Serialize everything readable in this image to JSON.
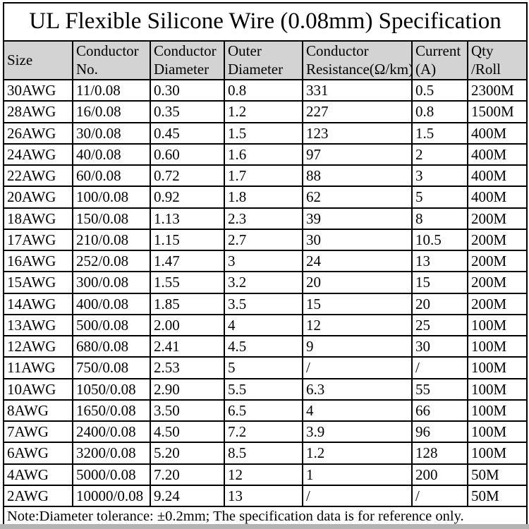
{
  "title": "UL Flexible Silicone Wire (0.08mm) Specification",
  "note": "Note:Diameter tolerance: ±0.2mm; The specification data is for reference only.",
  "colors": {
    "header_bg": "#d3d3d3",
    "border": "#000000",
    "bottom_strip": "#b3b3b3"
  },
  "table": {
    "headers": [
      {
        "lines": [
          "Size"
        ]
      },
      {
        "lines": [
          "Conductor",
          "No."
        ]
      },
      {
        "lines": [
          "Conductor",
          "Diameter"
        ]
      },
      {
        "lines": [
          "Outer",
          "Diameter"
        ]
      },
      {
        "lines": [
          "Conductor",
          "Resistance(Ω/km)"
        ]
      },
      {
        "lines": [
          "Current",
          "(A)"
        ]
      },
      {
        "lines": [
          "Qty",
          "/Roll"
        ]
      }
    ],
    "rows": [
      [
        "30AWG",
        "11/0.08",
        "0.30",
        "0.8",
        "331",
        "0.5",
        "2300M"
      ],
      [
        "28AWG",
        "16/0.08",
        "0.35",
        "1.2",
        "227",
        "0.8",
        "1500M"
      ],
      [
        "26AWG",
        "30/0.08",
        "0.45",
        "1.5",
        "123",
        "1.5",
        "400M"
      ],
      [
        "24AWG",
        "40/0.08",
        "0.60",
        "1.6",
        "97",
        "2",
        "400M"
      ],
      [
        "22AWG",
        "60/0.08",
        "0.72",
        "1.7",
        "88",
        "3",
        "400M"
      ],
      [
        "20AWG",
        "100/0.08",
        "0.92",
        "1.8",
        "62",
        "5",
        "400M"
      ],
      [
        "18AWG",
        "150/0.08",
        "1.13",
        "2.3",
        "39",
        "8",
        "200M"
      ],
      [
        "17AWG",
        "210/0.08",
        "1.15",
        "2.7",
        "30",
        "10.5",
        "200M"
      ],
      [
        "16AWG",
        "252/0.08",
        "1.47",
        "3",
        "24",
        "13",
        "200M"
      ],
      [
        "15AWG",
        "300/0.08",
        "1.55",
        "3.2",
        "20",
        "15",
        "200M"
      ],
      [
        "14AWG",
        "400/0.08",
        "1.85",
        "3.5",
        "15",
        "20",
        "200M"
      ],
      [
        "13AWG",
        "500/0.08",
        "2.00",
        "4",
        "12",
        "25",
        "100M"
      ],
      [
        "12AWG",
        "680/0.08",
        "2.41",
        "4.5",
        "9",
        "30",
        "100M"
      ],
      [
        "11AWG",
        "750/0.08",
        "2.53",
        "5",
        "/",
        "/",
        "100M"
      ],
      [
        "10AWG",
        "1050/0.08",
        "2.90",
        "5.5",
        "6.3",
        "55",
        "100M"
      ],
      [
        "8AWG",
        "1650/0.08",
        "3.50",
        "6.5",
        "4",
        "66",
        "100M"
      ],
      [
        "7AWG",
        "2400/0.08",
        "4.50",
        "7.2",
        "3.9",
        "96",
        "100M"
      ],
      [
        "6AWG",
        "3200/0.08",
        "5.20",
        "8.5",
        "1.2",
        "128",
        "100M"
      ],
      [
        "4AWG",
        "5000/0.08",
        "7.20",
        "12",
        "1",
        "200",
        "50M"
      ],
      [
        "2AWG",
        "10000/0.08",
        "9.24",
        "13",
        "/",
        "/",
        "50M"
      ]
    ]
  }
}
